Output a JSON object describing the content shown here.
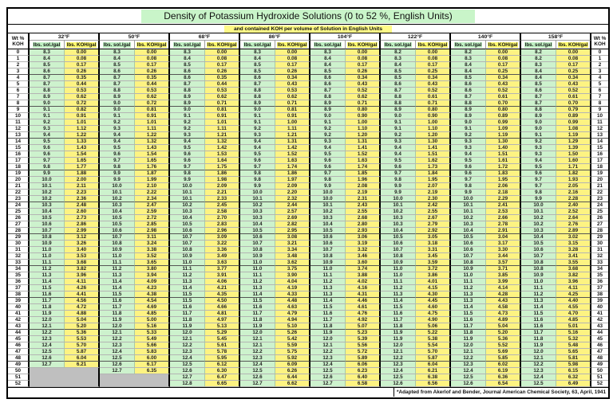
{
  "title": "Density of Potassium Hydroxide Solutions (0 to 52 %, English Units)",
  "subtitle": "and contained KOH per volume of Solution in English Units",
  "footer_note": "*Adapted from Akerlof and Bender, Journal American Chemical Society, 63, April, 1941",
  "colors": {
    "title_highlight": "#C9F5C9",
    "subtitle_highlight": "#FFFA87",
    "header_sol_highlight": "#BFEFC2",
    "header_koh_highlight": "#FFFA6E",
    "sol_column": "#CDF2CD",
    "koh_column": "#FDF382",
    "gray_empty": "#BFBFBF"
  },
  "table": {
    "wt_header_line1": "Wt %",
    "wt_header_line2": "KOH",
    "sub_sol_label": "lbs. sol./gal",
    "sub_koh_label": "lbs. KOH/gal",
    "temps": [
      "32°F",
      "50°F",
      "68°F",
      "86°F",
      "104°F",
      "122°F",
      "140°F",
      "158°F"
    ],
    "gray_spans": [
      {
        "group": 0,
        "from": 50,
        "rows": 3
      },
      {
        "group": 1,
        "from": 51,
        "rows": 2
      }
    ],
    "rows": [
      [
        "0",
        "8.3",
        "0.00",
        "8.3",
        "0.00",
        "8.3",
        "0.00",
        "8.3",
        "0.00",
        "8.3",
        "0.00",
        "8.2",
        "0.00",
        "8.2",
        "0.00",
        "8.2",
        "0.00"
      ],
      [
        "1",
        "8.4",
        "0.08",
        "8.4",
        "0.08",
        "8.4",
        "0.08",
        "8.4",
        "0.08",
        "8.4",
        "0.08",
        "8.3",
        "0.08",
        "8.3",
        "0.08",
        "8.2",
        "0.08"
      ],
      [
        "2",
        "8.5",
        "0.17",
        "8.5",
        "0.17",
        "8.5",
        "0.17",
        "8.5",
        "0.17",
        "8.4",
        "0.17",
        "8.4",
        "0.17",
        "8.4",
        "0.17",
        "8.3",
        "0.17"
      ],
      [
        "3",
        "8.6",
        "0.26",
        "8.6",
        "0.26",
        "8.6",
        "0.26",
        "8.5",
        "0.26",
        "8.5",
        "0.26",
        "8.5",
        "0.25",
        "8.4",
        "0.25",
        "8.4",
        "0.25"
      ],
      [
        "4",
        "8.7",
        "0.35",
        "8.7",
        "0.35",
        "8.6",
        "0.35",
        "8.6",
        "0.34",
        "8.6",
        "0.34",
        "8.5",
        "0.34",
        "8.5",
        "0.34",
        "8.4",
        "0.34"
      ],
      [
        "5",
        "8.7",
        "0.44",
        "8.7",
        "0.44",
        "8.7",
        "0.44",
        "8.7",
        "0.43",
        "8.6",
        "0.43",
        "8.6",
        "0.43",
        "8.6",
        "0.43",
        "8.5",
        "0.43"
      ],
      [
        "6",
        "8.8",
        "0.53",
        "8.8",
        "0.53",
        "8.8",
        "0.53",
        "8.8",
        "0.53",
        "8.7",
        "0.52",
        "8.7",
        "0.52",
        "8.6",
        "0.52",
        "8.6",
        "0.52"
      ],
      [
        "7",
        "8.9",
        "0.62",
        "8.9",
        "0.62",
        "8.9",
        "0.62",
        "8.8",
        "0.62",
        "8.8",
        "0.62",
        "8.8",
        "0.61",
        "8.7",
        "0.61",
        "8.7",
        "0.61"
      ],
      [
        "8",
        "9.0",
        "0.72",
        "9.0",
        "0.72",
        "8.9",
        "0.71",
        "8.9",
        "0.71",
        "8.9",
        "0.71",
        "8.8",
        "0.71",
        "8.8",
        "0.70",
        "8.7",
        "0.70"
      ],
      [
        "9",
        "9.1",
        "0.82",
        "9.0",
        "0.81",
        "9.0",
        "0.81",
        "9.0",
        "0.81",
        "8.9",
        "0.80",
        "8.9",
        "0.80",
        "8.9",
        "0.80",
        "8.8",
        "0.79"
      ],
      [
        "10",
        "9.1",
        "0.91",
        "9.1",
        "0.91",
        "9.1",
        "0.91",
        "9.1",
        "0.91",
        "9.0",
        "0.90",
        "9.0",
        "0.90",
        "8.9",
        "0.89",
        "8.9",
        "0.89"
      ],
      [
        "11",
        "9.2",
        "1.01",
        "9.2",
        "1.01",
        "9.2",
        "1.01",
        "9.1",
        "1.00",
        "9.1",
        "1.00",
        "9.1",
        "1.00",
        "9.0",
        "0.99",
        "9.0",
        "0.99"
      ],
      [
        "12",
        "9.3",
        "1.12",
        "9.3",
        "1.11",
        "9.2",
        "1.11",
        "9.2",
        "1.11",
        "9.2",
        "1.10",
        "9.1",
        "1.10",
        "9.1",
        "1.09",
        "9.0",
        "1.08"
      ],
      [
        "13",
        "9.4",
        "1.22",
        "9.4",
        "1.22",
        "9.3",
        "1.21",
        "9.3",
        "1.21",
        "9.2",
        "1.20",
        "9.2",
        "1.20",
        "9.2",
        "1.19",
        "9.1",
        "1.19"
      ],
      [
        "14",
        "9.5",
        "1.33",
        "9.4",
        "1.32",
        "9.4",
        "1.32",
        "9.4",
        "1.31",
        "9.3",
        "1.31",
        "9.3",
        "1.30",
        "9.3",
        "1.30",
        "9.2",
        "1.29"
      ],
      [
        "15",
        "9.6",
        "1.43",
        "9.5",
        "1.43",
        "9.5",
        "1.42",
        "9.4",
        "1.42",
        "9.4",
        "1.41",
        "9.4",
        "1.41",
        "9.3",
        "1.40",
        "9.3",
        "1.39"
      ],
      [
        "16",
        "9.6",
        "1.54",
        "9.6",
        "1.54",
        "9.6",
        "1.53",
        "9.5",
        "1.52",
        "9.5",
        "1.52",
        "9.4",
        "1.51",
        "9.4",
        "1.51",
        "9.3",
        "1.50"
      ],
      [
        "17",
        "9.7",
        "1.65",
        "9.7",
        "1.65",
        "9.6",
        "1.64",
        "9.6",
        "1.63",
        "9.6",
        "1.63",
        "9.5",
        "1.62",
        "9.5",
        "1.61",
        "9.4",
        "1.60"
      ],
      [
        "18",
        "9.8",
        "1.77",
        "9.8",
        "1.76",
        "9.7",
        "1.75",
        "9.7",
        "1.74",
        "9.6",
        "1.74",
        "9.6",
        "1.73",
        "9.6",
        "1.72",
        "9.5",
        "1.71"
      ],
      [
        "19",
        "9.9",
        "1.88",
        "9.9",
        "1.87",
        "9.8",
        "1.86",
        "9.8",
        "1.86",
        "9.7",
        "1.85",
        "9.7",
        "1.84",
        "9.6",
        "1.83",
        "9.6",
        "1.82"
      ],
      [
        "20",
        "10.0",
        "2.00",
        "9.9",
        "1.99",
        "9.9",
        "1.98",
        "9.8",
        "1.97",
        "9.8",
        "1.96",
        "9.8",
        "1.95",
        "9.7",
        "1.95",
        "9.7",
        "1.93"
      ],
      [
        "21",
        "10.1",
        "2.11",
        "10.0",
        "2.10",
        "10.0",
        "2.09",
        "9.9",
        "2.09",
        "9.9",
        "2.08",
        "9.9",
        "2.07",
        "9.8",
        "2.06",
        "9.7",
        "2.05"
      ],
      [
        "22",
        "10.2",
        "2.23",
        "10.1",
        "2.22",
        "10.1",
        "2.21",
        "10.0",
        "2.20",
        "10.0",
        "2.19",
        "9.9",
        "2.19",
        "9.9",
        "2.18",
        "9.8",
        "2.16"
      ],
      [
        "23",
        "10.2",
        "2.36",
        "10.2",
        "2.34",
        "10.1",
        "2.33",
        "10.1",
        "2.32",
        "10.0",
        "2.31",
        "10.0",
        "2.30",
        "10.0",
        "2.29",
        "9.9",
        "2.28"
      ],
      [
        "24",
        "10.3",
        "2.48",
        "10.3",
        "2.47",
        "10.2",
        "2.45",
        "10.2",
        "2.44",
        "10.1",
        "2.43",
        "10.1",
        "2.42",
        "10.1",
        "2.41",
        "10.0",
        "2.40"
      ],
      [
        "25",
        "10.4",
        "2.60",
        "10.4",
        "2.59",
        "10.3",
        "2.58",
        "10.3",
        "2.57",
        "10.2",
        "2.55",
        "10.2",
        "2.55",
        "10.1",
        "2.53",
        "10.1",
        "2.52"
      ],
      [
        "26",
        "10.5",
        "2.73",
        "10.5",
        "2.72",
        "10.4",
        "2.70",
        "10.3",
        "2.69",
        "10.3",
        "2.68",
        "10.3",
        "2.67",
        "10.2",
        "2.66",
        "10.2",
        "2.64"
      ],
      [
        "27",
        "10.6",
        "2.86",
        "10.5",
        "2.85",
        "10.5",
        "2.83",
        "10.4",
        "2.82",
        "10.4",
        "2.80",
        "10.3",
        "2.79",
        "10.3",
        "2.78",
        "10.2",
        "2.76"
      ],
      [
        "28",
        "10.7",
        "2.99",
        "10.6",
        "2.98",
        "10.6",
        "2.96",
        "10.5",
        "2.95",
        "10.5",
        "2.93",
        "10.4",
        "2.92",
        "10.4",
        "2.91",
        "10.3",
        "2.89"
      ],
      [
        "29",
        "10.8",
        "3.12",
        "10.7",
        "3.11",
        "10.7",
        "3.09",
        "10.6",
        "3.08",
        "10.6",
        "3.06",
        "10.5",
        "3.05",
        "10.5",
        "3.04",
        "10.4",
        "3.02"
      ],
      [
        "30",
        "10.9",
        "3.26",
        "10.8",
        "3.24",
        "10.7",
        "3.22",
        "10.7",
        "3.21",
        "10.6",
        "3.19",
        "10.6",
        "3.18",
        "10.6",
        "3.17",
        "10.5",
        "3.15"
      ],
      [
        "31",
        "11.0",
        "3.40",
        "10.9",
        "3.38",
        "10.8",
        "3.36",
        "10.8",
        "3.34",
        "10.7",
        "3.32",
        "10.7",
        "3.31",
        "10.6",
        "3.30",
        "10.6",
        "3.28"
      ],
      [
        "32",
        "11.0",
        "3.53",
        "11.0",
        "3.52",
        "10.9",
        "3.49",
        "10.9",
        "3.48",
        "10.8",
        "3.46",
        "10.8",
        "3.45",
        "10.7",
        "3.44",
        "10.7",
        "3.41"
      ],
      [
        "33",
        "11.1",
        "3.68",
        "11.1",
        "3.65",
        "11.0",
        "3.63",
        "11.0",
        "3.62",
        "10.9",
        "3.60",
        "10.9",
        "3.59",
        "10.8",
        "3.57",
        "10.8",
        "3.55"
      ],
      [
        "34",
        "11.2",
        "3.82",
        "11.2",
        "3.80",
        "11.1",
        "3.77",
        "11.0",
        "3.75",
        "11.0",
        "3.74",
        "11.0",
        "3.72",
        "10.9",
        "3.71",
        "10.8",
        "3.68"
      ],
      [
        "35",
        "11.3",
        "3.96",
        "11.3",
        "3.94",
        "11.2",
        "3.91",
        "11.1",
        "3.90",
        "11.1",
        "3.88",
        "11.0",
        "3.86",
        "11.0",
        "3.85",
        "10.9",
        "3.82"
      ],
      [
        "36",
        "11.4",
        "4.11",
        "11.4",
        "4.09",
        "11.3",
        "4.06",
        "11.2",
        "4.04",
        "11.2",
        "4.02",
        "11.1",
        "4.01",
        "11.1",
        "3.99",
        "11.0",
        "3.96"
      ],
      [
        "37",
        "11.5",
        "4.26",
        "11.4",
        "4.23",
        "11.4",
        "4.21",
        "11.3",
        "4.19",
        "11.3",
        "4.16",
        "11.2",
        "4.15",
        "11.2",
        "4.14",
        "11.1",
        "4.11"
      ],
      [
        "38",
        "11.6",
        "4.41",
        "11.5",
        "4.38",
        "11.5",
        "4.35",
        "11.4",
        "4.33",
        "11.3",
        "4.31",
        "11.3",
        "4.30",
        "11.3",
        "4.28",
        "11.2",
        "4.25"
      ],
      [
        "39",
        "11.7",
        "4.56",
        "11.6",
        "4.54",
        "11.5",
        "4.50",
        "11.5",
        "4.48",
        "11.4",
        "4.46",
        "11.4",
        "4.45",
        "11.3",
        "4.43",
        "11.3",
        "4.40"
      ],
      [
        "40",
        "11.8",
        "4.72",
        "11.7",
        "4.69",
        "11.6",
        "4.66",
        "11.6",
        "4.63",
        "11.5",
        "4.61",
        "11.5",
        "4.60",
        "11.4",
        "4.58",
        "11.4",
        "4.55"
      ],
      [
        "41",
        "11.9",
        "4.88",
        "11.8",
        "4.85",
        "11.7",
        "4.81",
        "11.7",
        "4.79",
        "11.6",
        "4.76",
        "11.6",
        "4.75",
        "11.5",
        "4.73",
        "11.5",
        "4.70"
      ],
      [
        "42",
        "12.0",
        "5.04",
        "11.9",
        "5.00",
        "11.8",
        "4.97",
        "11.8",
        "4.94",
        "11.7",
        "4.92",
        "11.7",
        "4.90",
        "11.6",
        "4.89",
        "11.6",
        "4.85"
      ],
      [
        "43",
        "12.1",
        "5.20",
        "12.0",
        "5.16",
        "11.9",
        "5.13",
        "11.9",
        "5.10",
        "11.8",
        "5.07",
        "11.8",
        "5.06",
        "11.7",
        "5.04",
        "11.6",
        "5.01"
      ],
      [
        "44",
        "12.2",
        "5.36",
        "12.1",
        "5.33",
        "12.0",
        "5.29",
        "12.0",
        "5.26",
        "11.9",
        "5.23",
        "11.9",
        "5.22",
        "11.8",
        "5.20",
        "11.7",
        "5.16"
      ],
      [
        "45",
        "12.3",
        "5.53",
        "12.2",
        "5.49",
        "12.1",
        "5.45",
        "12.1",
        "5.42",
        "12.0",
        "5.39",
        "11.9",
        "5.38",
        "11.9",
        "5.36",
        "11.8",
        "5.32"
      ],
      [
        "46",
        "12.4",
        "5.70",
        "12.3",
        "5.66",
        "12.2",
        "5.61",
        "12.1",
        "5.59",
        "12.1",
        "5.56",
        "12.0",
        "5.54",
        "12.0",
        "5.52",
        "11.9",
        "5.48"
      ],
      [
        "47",
        "12.5",
        "5.87",
        "12.4",
        "5.83",
        "12.3",
        "5.78",
        "12.2",
        "5.75",
        "12.2",
        "5.72",
        "12.1",
        "5.70",
        "12.1",
        "5.69",
        "12.0",
        "5.65"
      ],
      [
        "48",
        "12.6",
        "6.04",
        "12.5",
        "6.00",
        "12.4",
        "5.95",
        "12.3",
        "5.92",
        "12.3",
        "5.89",
        "12.2",
        "5.87",
        "12.2",
        "5.85",
        "12.1",
        "5.81"
      ],
      [
        "49",
        "12.7",
        "6.21",
        "12.6",
        "6.17",
        "12.5",
        "6.12",
        "12.4",
        "6.09",
        "12.4",
        "6.06",
        "12.3",
        "6.04",
        "12.3",
        "6.02",
        "12.2",
        "5.98"
      ],
      [
        "50",
        null,
        null,
        "12.7",
        "6.35",
        "12.6",
        "6.30",
        "12.5",
        "6.26",
        "12.5",
        "6.23",
        "12.4",
        "6.21",
        "12.4",
        "6.19",
        "12.3",
        "6.15"
      ],
      [
        "51",
        null,
        null,
        null,
        null,
        "12.7",
        "6.47",
        "12.6",
        "6.44",
        "12.6",
        "6.40",
        "12.5",
        "6.38",
        "12.5",
        "6.36",
        "12.4",
        "6.32"
      ],
      [
        "52",
        null,
        null,
        null,
        null,
        "12.8",
        "6.65",
        "12.7",
        "6.62",
        "12.7",
        "6.58",
        "12.6",
        "6.56",
        "12.6",
        "6.54",
        "12.5",
        "6.49"
      ]
    ]
  }
}
